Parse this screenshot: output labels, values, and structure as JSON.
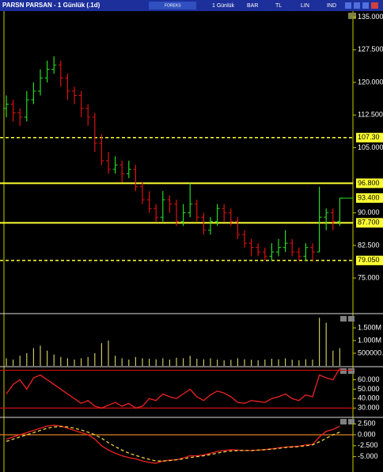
{
  "window": {
    "title": "PARSN PARSAN - 1 Günlük (.1d)",
    "toolbar": [
      "FOREKS",
      "1 Günlük",
      "BAR",
      "TL",
      "LIN",
      "IND"
    ]
  },
  "chart_data": [
    {
      "type": "ohlc",
      "up_color": "#22dd22",
      "down_color": "#dd1111",
      "open": [
        114,
        115,
        113,
        112,
        116,
        118,
        121,
        123,
        124,
        121,
        118,
        117,
        114,
        112,
        106,
        102,
        100,
        101,
        99,
        100,
        96,
        93,
        91,
        89,
        93,
        92,
        88,
        90,
        92,
        89,
        86,
        88,
        91,
        90,
        88,
        85,
        83,
        82,
        81,
        80,
        81,
        82,
        83,
        81,
        80,
        82,
        81,
        89,
        90,
        88
      ],
      "high": [
        117,
        116,
        114,
        118,
        120,
        123,
        125,
        126,
        125,
        122,
        119,
        118,
        115,
        113,
        108,
        104,
        103,
        102,
        102,
        101,
        97,
        95,
        92,
        95,
        94,
        93,
        92,
        96.8,
        93,
        90,
        89,
        92,
        92,
        91,
        89,
        86,
        84,
        83,
        82,
        83,
        84,
        86,
        84,
        82,
        83,
        83,
        96,
        91,
        91,
        93.4
      ],
      "low": [
        112,
        111,
        110,
        111,
        115,
        117,
        120,
        122,
        119,
        116,
        115,
        112,
        110,
        104,
        101,
        99,
        99,
        97,
        98,
        95,
        92,
        90,
        88,
        88,
        90,
        87,
        87,
        89,
        88,
        85,
        85,
        87,
        88,
        87,
        84,
        82,
        80,
        80,
        79,
        79,
        80,
        81,
        80,
        79,
        79,
        79,
        81,
        86,
        86,
        87
      ],
      "close": [
        115,
        113,
        112,
        116,
        118,
        121,
        123,
        124,
        121,
        118,
        117,
        114,
        112,
        106,
        102,
        100,
        101,
        99,
        100,
        96,
        93,
        91,
        89,
        93,
        92,
        88,
        90,
        92,
        89,
        86,
        88,
        91,
        90,
        88,
        85,
        83,
        82,
        81,
        80,
        81,
        82,
        83,
        81,
        80,
        82,
        81,
        89,
        90,
        88,
        93.4
      ],
      "ylim": [
        67,
        136.4
      ],
      "yticks": [
        {
          "value": 135,
          "label": "135.000"
        },
        {
          "value": 127.5,
          "label": "127.500"
        },
        {
          "value": 120,
          "label": "120.000"
        },
        {
          "value": 112.5,
          "label": "112.500"
        },
        {
          "value": 105,
          "label": "105.000"
        },
        {
          "value": 90,
          "label": "90.000"
        },
        {
          "value": 82.5,
          "label": "82.500"
        },
        {
          "value": 75,
          "label": "75.000"
        }
      ],
      "hlines": [
        {
          "value": 107.3,
          "label": "107.30",
          "style": "dashed"
        },
        {
          "value": 96.8,
          "label": "96.800",
          "style": "solid"
        },
        {
          "value": 87.7,
          "label": "87.700",
          "style": "solid"
        },
        {
          "value": 79.05,
          "label": "79.050",
          "style": "dashed"
        }
      ],
      "hline_color": "#ffff33",
      "last": {
        "value": 93.4,
        "label": "93.400"
      }
    },
    {
      "type": "volume",
      "color": "#c8c860",
      "values": [
        300000,
        250000,
        400000,
        500000,
        700000,
        800000,
        600000,
        450000,
        350000,
        300000,
        250000,
        300000,
        350000,
        500000,
        900000,
        1000000,
        400000,
        300000,
        250000,
        350000,
        300000,
        280000,
        260000,
        300000,
        250000,
        320000,
        300000,
        400000,
        280000,
        260000,
        300000,
        250000,
        220000,
        240000,
        300000,
        260000,
        240000,
        220000,
        250000,
        280000,
        260000,
        300000,
        240000,
        220000,
        260000,
        250000,
        1900000,
        1700000,
        600000,
        700000
      ],
      "ylim": [
        0,
        2000000
      ],
      "yticks": [
        {
          "value": 1500000,
          "label": "1.500M"
        },
        {
          "value": 1000000,
          "label": "1.000M"
        },
        {
          "value": 500000,
          "label": "500000.0"
        }
      ]
    },
    {
      "type": "line",
      "hlines": [
        70,
        30
      ],
      "hline_color": "#cc1111",
      "series": [
        {
          "color": "#ee2222",
          "values": [
            45,
            55,
            60,
            50,
            62,
            65,
            60,
            55,
            50,
            45,
            40,
            35,
            38,
            32,
            30,
            33,
            36,
            32,
            35,
            30,
            32,
            40,
            38,
            45,
            42,
            40,
            45,
            50,
            42,
            38,
            44,
            48,
            46,
            42,
            36,
            35,
            38,
            37,
            36,
            40,
            42,
            45,
            40,
            38,
            44,
            42,
            65,
            62,
            60,
            72
          ]
        }
      ],
      "ylim": [
        21,
        73
      ],
      "yticks": [
        {
          "value": 60,
          "label": "60.000"
        },
        {
          "value": 50,
          "label": "50.000"
        },
        {
          "value": 40,
          "label": "40.000"
        },
        {
          "value": 30,
          "label": "30.000"
        }
      ]
    },
    {
      "type": "line",
      "hlines": [
        0
      ],
      "hline_color": "#e08020",
      "series": [
        {
          "color": "#ee2222",
          "values": [
            -1,
            -0.5,
            0,
            0.5,
            1,
            1.5,
            2,
            2.2,
            2,
            1.5,
            1,
            0.5,
            0,
            -1,
            -2.5,
            -3.5,
            -4.2,
            -4.8,
            -5.2,
            -5.5,
            -6,
            -6.3,
            -6.5,
            -6,
            -5.8,
            -5.7,
            -5.3,
            -4.8,
            -4.8,
            -4.6,
            -4.2,
            -3.8,
            -3.6,
            -3.4,
            -3.5,
            -3.6,
            -3.6,
            -3.5,
            -3.4,
            -3.2,
            -3,
            -2.8,
            -2.7,
            -2.6,
            -2.3,
            -2.2,
            -0.5,
            0.8,
            1.2,
            2
          ]
        },
        {
          "color": "#f0d040",
          "dashed": true,
          "values": [
            -1.5,
            -1,
            -0.5,
            0,
            0.5,
            1,
            1.5,
            1.8,
            1.9,
            1.8,
            1.5,
            1.1,
            0.6,
            0,
            -0.8,
            -1.8,
            -2.7,
            -3.5,
            -4.2,
            -4.7,
            -5.2,
            -5.6,
            -6,
            -6,
            -5.9,
            -5.7,
            -5.5,
            -5.2,
            -5,
            -4.8,
            -4.5,
            -4.2,
            -3.9,
            -3.7,
            -3.6,
            -3.6,
            -3.6,
            -3.5,
            -3.4,
            -3.3,
            -3.1,
            -2.9,
            -2.8,
            -2.7,
            -2.5,
            -2.3,
            -1.6,
            -0.8,
            0,
            0.6
          ]
        }
      ],
      "ylim": [
        -8.5,
        3.8
      ],
      "yticks": [
        {
          "value": 2.5,
          "label": "2.500"
        },
        {
          "value": 0,
          "label": "0.000"
        },
        {
          "value": -2.5,
          "label": "-2.500"
        },
        {
          "value": -5,
          "label": "-5.000"
        }
      ]
    }
  ]
}
